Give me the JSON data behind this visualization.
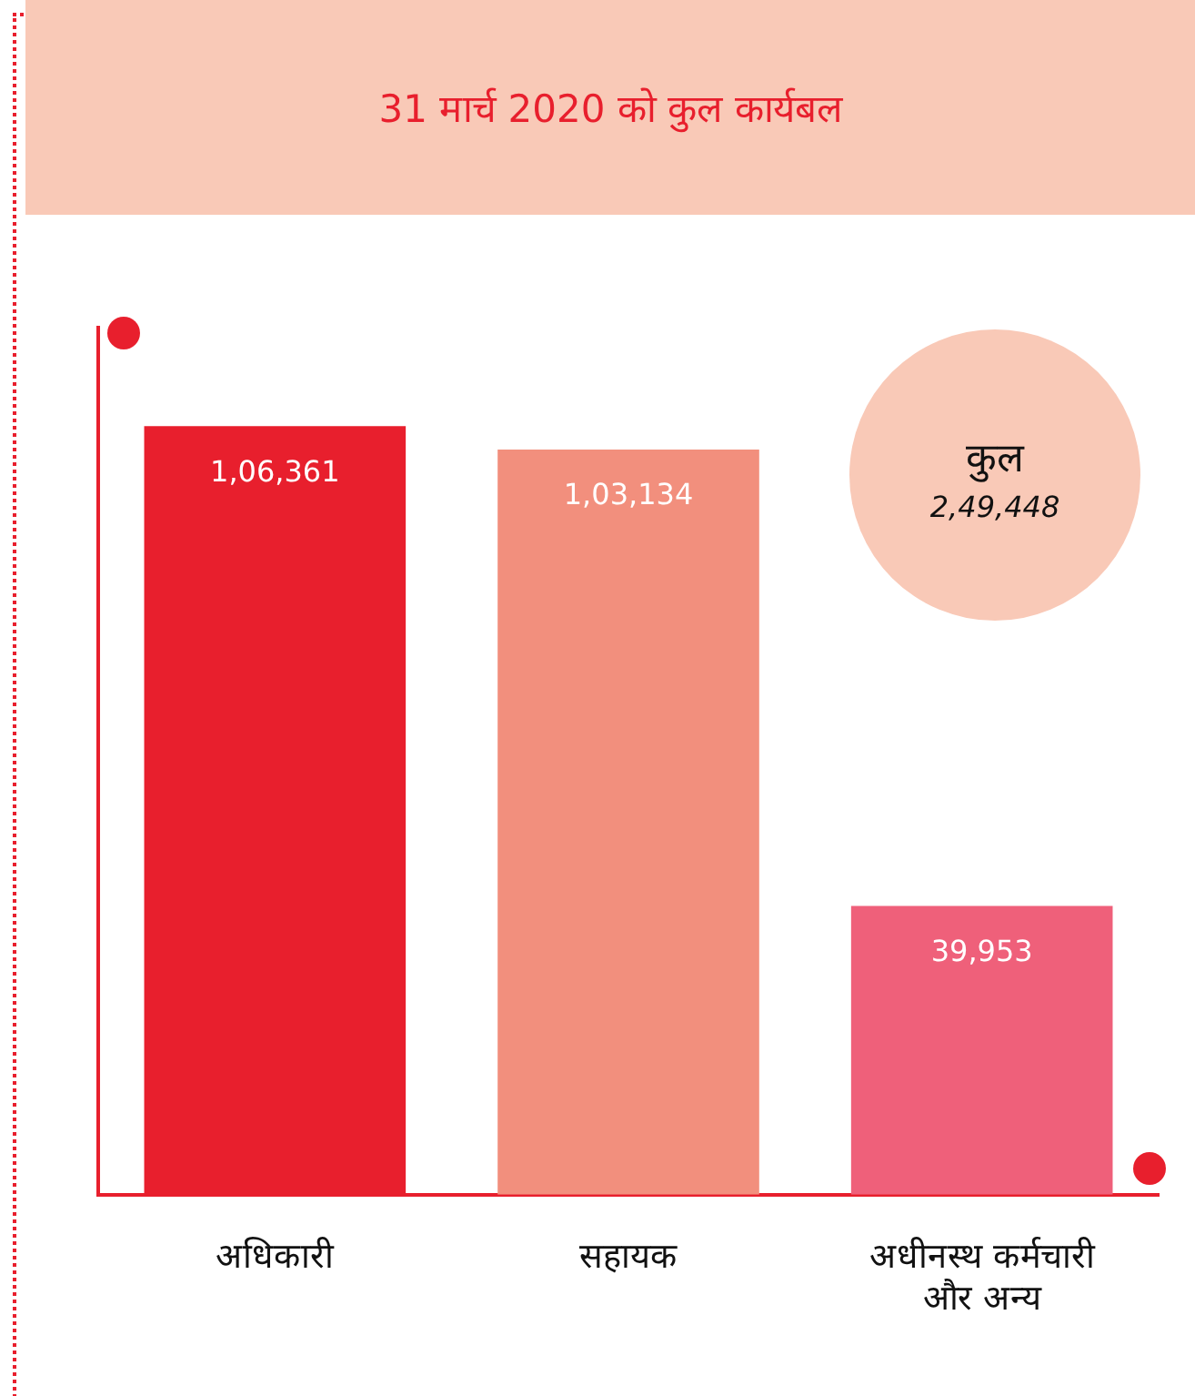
{
  "chart_data": {
    "type": "bar",
    "title": "31 मार्च 2020 को कुल कार्यबल",
    "categories": [
      "अधिकारी",
      "सहायक",
      "अधीनस्थ कर्मचारी और अन्य"
    ],
    "values": [
      106361,
      103134,
      39953
    ],
    "colors": [
      "#e81f2d",
      "#f28f7d",
      "#ef607a"
    ],
    "value_labels": [
      "1,06,361",
      "1,03,134",
      "39,953"
    ],
    "annotations": [
      "कुल",
      "2,49,448"
    ],
    "grid": false,
    "legend": false
  }
}
